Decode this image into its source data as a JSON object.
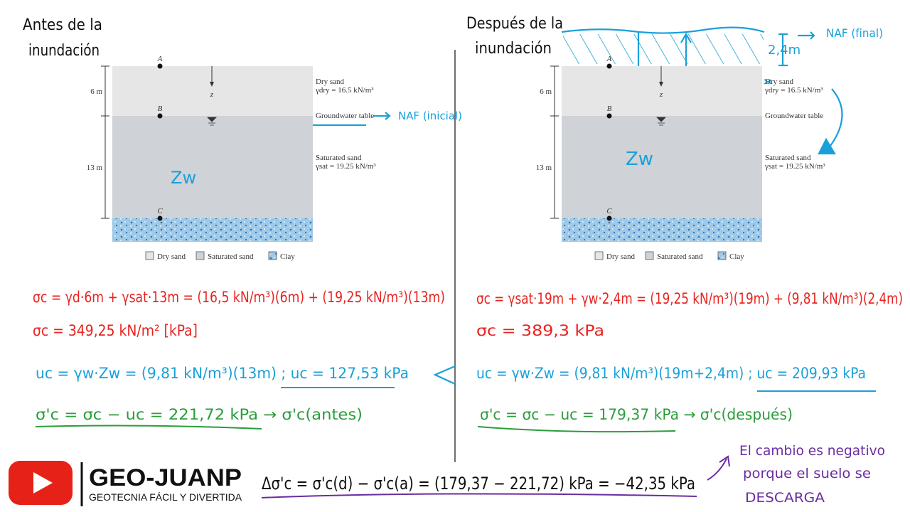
{
  "left": {
    "title": [
      "Antes de la",
      "inundación"
    ],
    "zw": "Zw",
    "naf": "NAF (inicial)",
    "equations": [
      "σc = γd·6m + γsat·13m = (16,5 kN/m³)(6m) + (19,25 kN/m³)(13m)",
      "σc = 349,25 kN/m² [kPa]",
      "uc = γw·Zw = (9,81 kN/m³)(13m) ;  uc = 127,53 kPa",
      "σ'c = σc − uc = 221,72 kPa → σ'c(antes)"
    ]
  },
  "right": {
    "title": [
      "Después de la",
      "inundación"
    ],
    "zw": "Zw",
    "depth": "2,4m",
    "naf": "NAF (final)",
    "equations": [
      "σc = γsat·19m + γw·2,4m = (19,25 kN/m³)(19m) + (9,81 kN/m³)(2,4m)",
      "σc = 389,3 kPa",
      "uc = γw·Zw = (9,81 kN/m³)(19m+2,4m) ;  uc = 209,93 kPa",
      "σ'c = σc − uc = 179,37 kPa → σ'c(después)"
    ]
  },
  "diagram": {
    "points": [
      "A",
      "B",
      "C"
    ],
    "depths": [
      "6 m",
      "13 m"
    ],
    "z": "z",
    "dry_sand": "Dry sand",
    "gamma_dry": "γdry = 16.5 kN/m³",
    "groundwater": "Groundwater table",
    "saturated_sand": "Saturated sand",
    "gamma_sat": "γsat = 19.25 kN/m³",
    "legend": [
      "Dry sand",
      "Saturated sand",
      "Clay"
    ]
  },
  "brand": {
    "name": "GEO-JUANP",
    "tagline": "GEOTECNIA FÁCIL Y DIVERTIDA"
  },
  "result": "Δσ'c = σ'c(d) − σ'c(a) = (179,37 − 221,72) kPa = −42,35 kPa",
  "note": [
    "El cambio es negativo",
    "porque el suelo se",
    "DESCARGA"
  ]
}
